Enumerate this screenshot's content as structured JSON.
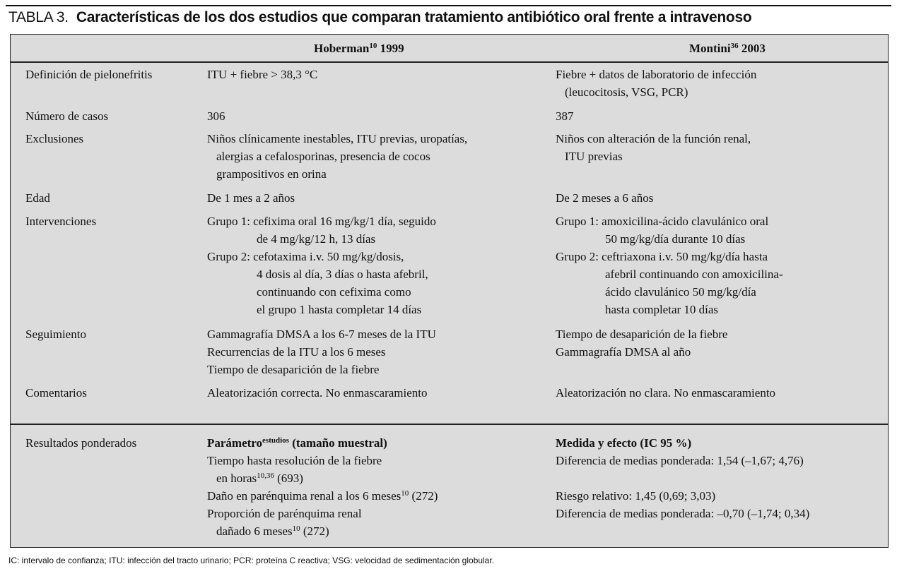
{
  "title": {
    "label": "TABLA 3.",
    "text": "Características de los dos estudios que comparan tratamiento antibiótico oral frente a intravenoso"
  },
  "header": {
    "hoberman": {
      "name": "Hoberman",
      "ref": "10",
      "year": " 1999"
    },
    "montini": {
      "name": "Montini",
      "ref": "36",
      "year": " 2003"
    }
  },
  "rows": {
    "definicion": {
      "label": "Definición de pielonefritis",
      "c1": [
        "ITU + fiebre > 38,3 °C"
      ],
      "c2": [
        "Fiebre + datos de laboratorio de infección",
        "(leucocitosis, VSG, PCR)"
      ]
    },
    "casos": {
      "label": "Número de casos",
      "c1": [
        "306"
      ],
      "c2": [
        "387"
      ]
    },
    "exclusiones": {
      "label": "Exclusiones",
      "c1": [
        "Niños clínicamente inestables, ITU previas, uropatías,",
        "alergias a cefalosporinas, presencia de cocos",
        "grampositivos en orina"
      ],
      "c2": [
        "Niños con alteración de la función renal,",
        "ITU previas"
      ]
    },
    "edad": {
      "label": "Edad",
      "c1": [
        "De 1 mes a 2 años"
      ],
      "c2": [
        "De 2 meses a 6 años"
      ]
    },
    "intervenciones": {
      "label": "Intervenciones",
      "c1": [
        "Grupo 1:  cefixima oral 16 mg/kg/1 día, seguido",
        "de 4 mg/kg/12 h, 13 días",
        "Grupo 2:  cefotaxima i.v. 50 mg/kg/dosis,",
        "4 dosis al día, 3 días o hasta afebril,",
        "continuando con cefixima como",
        "el grupo 1 hasta completar 14 días"
      ],
      "c2": [
        "Grupo 1:  amoxicilina-ácido clavulánico oral",
        "50 mg/kg/día durante 10 días",
        "Grupo 2:  ceftriaxona i.v. 50 mg/kg/día hasta",
        "afebril continuando con amoxicilina-",
        "ácido clavulánico 50 mg/kg/día",
        "hasta completar 10 días"
      ]
    },
    "seguimiento": {
      "label": "Seguimiento",
      "c1": [
        "Gammagrafía DMSA a los 6-7 meses de la ITU",
        "Recurrencias de la ITU a los 6 meses",
        "Tiempo de desaparición de la fiebre"
      ],
      "c2": [
        "Tiempo de desaparición de la fiebre",
        "Gammagrafía DMSA al año"
      ]
    },
    "comentarios": {
      "label": "Comentarios",
      "c1": [
        "Aleatorización correcta. No enmascaramiento"
      ],
      "c2": [
        "Aleatorización no clara. No enmascaramiento"
      ]
    },
    "resultados": {
      "label": "Resultados ponderados",
      "c1_header": {
        "text": "Parámetro",
        "sup": "estudios",
        "rest": " (tamaño muestral)"
      },
      "c2_header": "Medida y efecto (IC 95 %)",
      "p1": {
        "a": "Tiempo hasta resolución de la fiebre",
        "b": "en horas",
        "sup": "10,36",
        "c": " (693)"
      },
      "p2": {
        "a": "Daño en parénquima renal a los 6 meses",
        "sup": "10",
        "c": " (272)"
      },
      "p3": {
        "a": "Proporción de parénquima renal",
        "b": "dañado 6 meses",
        "sup": "10",
        "c": " (272)"
      },
      "e1": "Diferencia de medias ponderada: 1,54 (–1,67; 4,76)",
      "e2": "Riesgo relativo: 1,45 (0,69; 3,03)",
      "e3": "Diferencia de medias ponderada: –0,70 (–1,74; 0,34)"
    }
  },
  "footnote": "IC: intervalo de confianza; ITU: infección del tracto urinario; PCR: proteína C reactiva; VSG: velocidad de sedimentación globular."
}
